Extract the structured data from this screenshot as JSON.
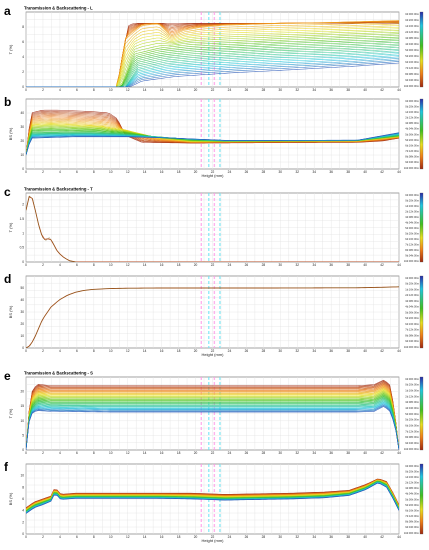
{
  "chart_data": [
    {
      "type": "line",
      "panel_label": "a",
      "group_title": "Transmission & Backscattering - L",
      "ylabel": "T (%)",
      "xlabel": "",
      "xlim": [
        0,
        45
      ],
      "ylim": [
        0,
        10
      ],
      "xticks": [
        "0",
        "2",
        "4",
        "6",
        "8",
        "10",
        "12",
        "14",
        "16",
        "18",
        "20",
        "22",
        "24",
        "26",
        "28",
        "30",
        "32",
        "34",
        "36",
        "38",
        "40",
        "42",
        "44"
      ],
      "yticks": [
        "0",
        "2",
        "4",
        "6",
        "8"
      ],
      "legend": [
        "0d:00h:00m",
        "0d:20h:00m",
        "1d:16h:00m",
        "2d:12h:00m",
        "3d:08h:00m",
        "4d:04h:00m",
        "5d:00h:00m",
        "5d:20h:00m",
        "6d:16h:00m",
        "7d:12h:00m",
        "8d:08h:00m",
        "9d:04h:00m",
        "10d:00h:00m"
      ],
      "series": [
        {
          "values_x": [
            0,
            11,
            11.6,
            12.4,
            13.2,
            45
          ],
          "values_y": [
            0,
            0,
            4,
            8.3,
            8.5,
            8.5
          ]
        },
        {
          "values_x": [
            0,
            11,
            12,
            14,
            16,
            17.5,
            19,
            21,
            24,
            30,
            36,
            45
          ],
          "values_y": [
            0,
            0,
            6.5,
            8.3,
            8.5,
            6.8,
            7.6,
            8.0,
            8.3,
            8.5,
            8.6,
            8.9
          ]
        },
        {
          "values_x": [
            0,
            11.5,
            13,
            16,
            20,
            26,
            32,
            38,
            45
          ],
          "values_y": [
            0,
            0,
            4.5,
            5.3,
            5.8,
            6.1,
            6.4,
            6.7,
            7.0
          ]
        },
        {
          "values_x": [
            0,
            12,
            13.5,
            17,
            22,
            30,
            38,
            45
          ],
          "values_y": [
            0,
            0,
            2.5,
            3.3,
            3.8,
            4.3,
            4.6,
            5.0
          ]
        },
        {
          "values_x": [
            0,
            12.5,
            14,
            18,
            25,
            32,
            40,
            45
          ],
          "values_y": [
            0,
            0,
            0.8,
            1.4,
            1.9,
            2.3,
            2.8,
            3.2
          ]
        }
      ]
    },
    {
      "type": "line",
      "panel_label": "b",
      "ylabel": "BS (%)",
      "xlabel": "Height (mm)",
      "xlim": [
        0,
        45
      ],
      "ylim": [
        0,
        50
      ],
      "xticks": [
        "0",
        "2",
        "4",
        "6",
        "8",
        "10",
        "12",
        "14",
        "16",
        "18",
        "20",
        "22",
        "24",
        "26",
        "28",
        "30",
        "32",
        "34",
        "36",
        "38",
        "40",
        "42",
        "44"
      ],
      "yticks": [
        "0",
        "10",
        "20",
        "30",
        "40"
      ],
      "legend": [
        "0d:00h:00m",
        "0d:20h:00m",
        "1d:16h:00m",
        "2d:12h:00m",
        "3d:08h:00m",
        "4d:04h:00m",
        "5d:00h:00m",
        "5d:20h:00m",
        "6d:16h:00m",
        "7d:12h:00m",
        "8d:08h:00m",
        "9d:04h:00m",
        "10d:00h:00m"
      ],
      "series": [
        {
          "values_x": [
            0,
            0.6,
            2,
            4,
            6,
            8,
            10,
            11,
            12,
            14,
            20,
            30,
            40,
            43,
            45
          ],
          "values_y": [
            10,
            40,
            42,
            42,
            41.5,
            41,
            40,
            36,
            24,
            19,
            18.5,
            18.8,
            19,
            20,
            22
          ]
        },
        {
          "values_x": [
            0,
            0.6,
            3,
            6,
            9,
            12,
            14,
            16,
            20,
            30,
            40,
            45
          ],
          "values_y": [
            10,
            32,
            33,
            32,
            31,
            28,
            25,
            22,
            19.5,
            19.8,
            20,
            23
          ]
        },
        {
          "values_x": [
            0,
            0.6,
            4,
            8,
            12,
            16,
            20,
            24,
            30,
            40,
            45
          ],
          "values_y": [
            10,
            26,
            26,
            26,
            25,
            23,
            21,
            20,
            20.2,
            20.4,
            24
          ]
        },
        {
          "values_x": [
            0,
            0.6,
            6,
            12,
            18,
            24,
            30,
            40,
            45
          ],
          "values_y": [
            10,
            22,
            23,
            23,
            22,
            20.5,
            20.5,
            20.6,
            26
          ]
        }
      ]
    },
    {
      "type": "line",
      "panel_label": "c",
      "group_title": "Transmission & Backscattering - T",
      "ylabel": "T (%)",
      "xlabel": "",
      "xlim": [
        0,
        45
      ],
      "ylim": [
        0,
        2.4
      ],
      "xticks": [
        "0",
        "2",
        "4",
        "6",
        "8",
        "10",
        "12",
        "14",
        "16",
        "18",
        "20",
        "22",
        "24",
        "26",
        "28",
        "30",
        "32",
        "34",
        "36",
        "38",
        "40",
        "42",
        "44"
      ],
      "yticks": [
        "0",
        "0.5",
        "1",
        "1.5",
        "2"
      ],
      "legend": [
        "0d:00h:00m",
        "0d:20h:00m",
        "1d:16h:00m",
        "2d:12h:00m",
        "3d:08h:00m",
        "4d:04h:00m",
        "5d:00h:00m",
        "5d:20h:00m",
        "6d:16h:00m",
        "7d:12h:00m",
        "8d:08h:00m",
        "9d:04h:00m",
        "10d:00h:00m"
      ],
      "series": [
        {
          "values_x": [
            0,
            0.4,
            0.8,
            1.2,
            1.6,
            2.0,
            2.4,
            2.8,
            3.2,
            3.6,
            4.0,
            4.6,
            5.2,
            6.0
          ],
          "values_y": [
            1.8,
            2.3,
            2.2,
            1.7,
            1.2,
            0.85,
            0.75,
            0.85,
            0.7,
            0.45,
            0.3,
            0.15,
            0.05,
            0
          ]
        }
      ]
    },
    {
      "type": "line",
      "panel_label": "d",
      "ylabel": "BS (%)",
      "xlabel": "Height (mm)",
      "xlim": [
        0,
        45
      ],
      "ylim": [
        0,
        60
      ],
      "xticks": [
        "0",
        "2",
        "4",
        "6",
        "8",
        "10",
        "12",
        "14",
        "16",
        "18",
        "20",
        "22",
        "24",
        "26",
        "28",
        "30",
        "32",
        "34",
        "36",
        "38",
        "40",
        "42",
        "44"
      ],
      "yticks": [
        "0",
        "10",
        "20",
        "30",
        "40",
        "50"
      ],
      "legend": [
        "0d:00h:00m",
        "0d:20h:00m",
        "1d:16h:00m",
        "2d:12h:00m",
        "3d:08h:00m",
        "4d:04h:00m",
        "5d:00h:00m",
        "5d:20h:00m",
        "6d:16h:00m",
        "7d:12h:00m",
        "8d:08h:00m",
        "9d:04h:00m",
        "10d:00h:00m"
      ],
      "series": [
        {
          "values_x": [
            0,
            0.5,
            1,
            1.5,
            2,
            3,
            4,
            5,
            6,
            7,
            8,
            10,
            12,
            16,
            20,
            30,
            40,
            43,
            45
          ],
          "values_y": [
            0,
            2,
            8,
            16,
            24,
            34,
            40,
            44,
            46.5,
            48,
            48.8,
            49.5,
            49.8,
            50,
            50,
            50,
            50.2,
            50.6,
            51
          ]
        }
      ]
    },
    {
      "type": "line",
      "panel_label": "e",
      "group_title": "Transmission & Backscattering - S",
      "ylabel": "T (%)",
      "xlabel": "",
      "xlim": [
        0,
        45
      ],
      "ylim": [
        0,
        25
      ],
      "xticks": [
        "0",
        "2",
        "4",
        "6",
        "8",
        "10",
        "12",
        "14",
        "16",
        "18",
        "20",
        "22",
        "24",
        "26",
        "28",
        "30",
        "32",
        "34",
        "36",
        "38",
        "40",
        "42",
        "44"
      ],
      "yticks": [
        "0",
        "5",
        "10",
        "15",
        "20"
      ],
      "legend": [
        "0d:00h:00m",
        "0d:20h:00m",
        "1d:16h:00m",
        "2d:12h:00m",
        "3d:08h:00m",
        "4d:04h:00m",
        "5d:00h:00m",
        "5d:20h:00m",
        "6d:16h:00m",
        "7d:12h:00m",
        "8d:08h:00m",
        "9d:04h:00m",
        "10d:00h:00m"
      ],
      "series": [
        {
          "values_x": [
            0,
            0.3,
            0.8,
            1.5,
            3,
            10,
            20,
            30,
            40,
            42,
            43.2,
            44,
            44.6,
            45
          ],
          "values_y": [
            0,
            12,
            21,
            22.5,
            22,
            22,
            22,
            22,
            22,
            22.4,
            24,
            22,
            10,
            0
          ]
        },
        {
          "values_x": [
            0,
            0.3,
            0.8,
            1.5,
            3,
            10,
            20,
            30,
            40,
            42,
            43.2,
            44,
            44.6,
            45
          ],
          "values_y": [
            0,
            11,
            18,
            19.5,
            19,
            19,
            19,
            19,
            19,
            19.3,
            21,
            19,
            9,
            0
          ]
        },
        {
          "values_x": [
            0,
            0.3,
            0.8,
            1.5,
            3,
            10,
            20,
            30,
            40,
            42,
            43.2,
            44,
            44.6,
            45
          ],
          "values_y": [
            0,
            10,
            15,
            16.5,
            16,
            16,
            16,
            16,
            16,
            16.3,
            18,
            16,
            8,
            0
          ]
        },
        {
          "values_x": [
            0,
            0.3,
            0.8,
            1.5,
            3,
            10,
            20,
            30,
            40,
            42,
            43.2,
            44,
            44.6,
            45
          ],
          "values_y": [
            0,
            9,
            13,
            13.5,
            13.2,
            13,
            13,
            13,
            13,
            13.2,
            15,
            13,
            7,
            0
          ]
        }
      ]
    },
    {
      "type": "line",
      "panel_label": "f",
      "ylabel": "BS (%)",
      "xlabel": "Height (mm)",
      "xlim": [
        0,
        45
      ],
      "ylim": [
        0,
        12
      ],
      "xticks": [
        "0",
        "2",
        "4",
        "6",
        "8",
        "10",
        "12",
        "14",
        "16",
        "18",
        "20",
        "22",
        "24",
        "26",
        "28",
        "30",
        "32",
        "34",
        "36",
        "38",
        "40",
        "42",
        "44"
      ],
      "yticks": [
        "0",
        "2",
        "4",
        "6",
        "8",
        "10"
      ],
      "legend": [
        "0d:00h:00m",
        "0d:20h:00m",
        "1d:16h:00m",
        "2d:12h:00m",
        "3d:08h:00m",
        "4d:04h:00m",
        "5d:00h:00m",
        "5d:20h:00m",
        "6d:16h:00m",
        "7d:12h:00m",
        "8d:08h:00m",
        "9d:04h:00m",
        "10d:00h:00m"
      ],
      "series": [
        {
          "values_x": [
            0,
            1,
            2,
            3,
            3.5,
            4.2,
            6,
            10,
            16,
            20,
            24,
            28,
            32,
            36,
            39,
            41,
            42.5,
            43.5,
            44.3,
            45
          ],
          "values_y": [
            4.5,
            5.5,
            6.0,
            6.5,
            8.0,
            6.8,
            7.0,
            7.0,
            7.0,
            7.0,
            6.8,
            6.9,
            7.0,
            7.2,
            7.5,
            8.5,
            9.5,
            9.0,
            7.0,
            5.0
          ]
        },
        {
          "values_x": [
            0,
            1,
            2,
            3,
            3.5,
            4.2,
            6,
            10,
            16,
            20,
            24,
            28,
            32,
            36,
            39,
            41,
            42.5,
            43.5,
            44.3,
            45
          ],
          "values_y": [
            4.0,
            5.0,
            5.5,
            6.0,
            7.5,
            6.3,
            6.5,
            6.5,
            6.5,
            6.4,
            6.2,
            6.3,
            6.4,
            6.6,
            7.0,
            8.0,
            9.2,
            8.5,
            6.5,
            4.5
          ]
        },
        {
          "values_x": [
            0,
            1,
            2,
            3,
            3.5,
            4.2,
            6,
            10,
            16,
            20,
            24,
            28,
            32,
            36,
            39,
            41,
            42.5,
            43.5,
            44.3,
            45
          ],
          "values_y": [
            3.5,
            4.5,
            5.0,
            5.6,
            7.0,
            5.9,
            6.1,
            6.1,
            6.1,
            6.0,
            5.8,
            5.9,
            6.0,
            6.2,
            6.6,
            7.6,
            8.8,
            8.0,
            6.0,
            4.0
          ]
        }
      ]
    }
  ],
  "colors": {
    "scale_top": "#2a2aa8",
    "scale_cyan": "#20c8e0",
    "scale_green": "#40c020",
    "scale_yellow": "#e8e020",
    "scale_orange": "#f08018",
    "scale_bottom": "#a02810",
    "artifact_pink": "#ff9ae8",
    "artifact_cyan": "#6ee6f5"
  }
}
